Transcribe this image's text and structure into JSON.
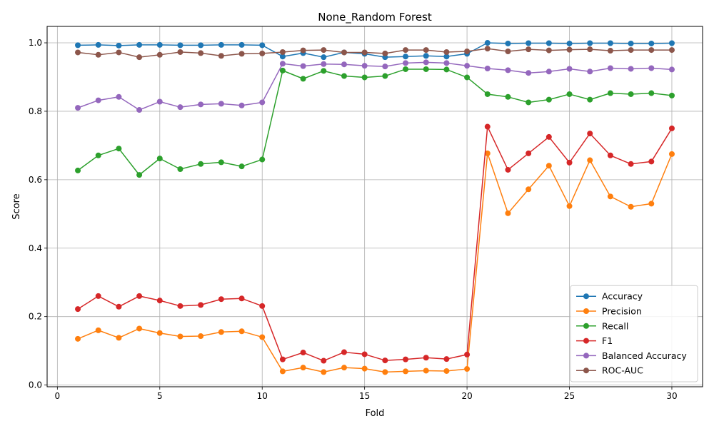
{
  "chart_data": {
    "type": "line",
    "title": "None_Random Forest",
    "xlabel": "Fold",
    "ylabel": "Score",
    "xlim": [
      -0.5,
      31.5
    ],
    "ylim": [
      -0.005,
      1.048
    ],
    "xticks": [
      0,
      5,
      10,
      15,
      20,
      25,
      30
    ],
    "yticks": [
      0.0,
      0.2,
      0.4,
      0.6,
      0.8,
      1.0
    ],
    "grid": true,
    "legend_position": "lower-right",
    "x": [
      1,
      2,
      3,
      4,
      5,
      6,
      7,
      8,
      9,
      10,
      11,
      12,
      13,
      14,
      15,
      16,
      17,
      18,
      19,
      20,
      21,
      22,
      23,
      24,
      25,
      26,
      27,
      28,
      29,
      30
    ],
    "series": [
      {
        "name": "Accuracy",
        "color": "#1f77b4",
        "values": [
          0.993,
          0.994,
          0.992,
          0.994,
          0.994,
          0.993,
          0.993,
          0.994,
          0.994,
          0.993,
          0.96,
          0.97,
          0.958,
          0.972,
          0.968,
          0.958,
          0.96,
          0.962,
          0.96,
          0.968,
          1.0,
          0.998,
          0.999,
          0.999,
          0.998,
          0.999,
          0.999,
          0.998,
          0.998,
          0.999
        ]
      },
      {
        "name": "Precision",
        "color": "#ff7f0e",
        "values": [
          0.135,
          0.16,
          0.138,
          0.165,
          0.152,
          0.142,
          0.143,
          0.155,
          0.157,
          0.14,
          0.04,
          0.051,
          0.038,
          0.051,
          0.048,
          0.038,
          0.04,
          0.042,
          0.041,
          0.047,
          0.677,
          0.502,
          0.572,
          0.641,
          0.523,
          0.657,
          0.551,
          0.521,
          0.53,
          0.675
        ]
      },
      {
        "name": "Recall",
        "color": "#2ca02c",
        "values": [
          0.627,
          0.671,
          0.691,
          0.614,
          0.662,
          0.631,
          0.646,
          0.651,
          0.639,
          0.659,
          0.919,
          0.895,
          0.918,
          0.903,
          0.899,
          0.903,
          0.923,
          0.923,
          0.922,
          0.899,
          0.85,
          0.842,
          0.826,
          0.834,
          0.85,
          0.834,
          0.853,
          0.85,
          0.853,
          0.846
        ]
      },
      {
        "name": "F1",
        "color": "#d62728",
        "values": [
          0.222,
          0.26,
          0.229,
          0.26,
          0.247,
          0.231,
          0.234,
          0.251,
          0.253,
          0.231,
          0.075,
          0.095,
          0.071,
          0.096,
          0.09,
          0.072,
          0.075,
          0.08,
          0.076,
          0.089,
          0.755,
          0.629,
          0.677,
          0.725,
          0.65,
          0.735,
          0.671,
          0.646,
          0.653,
          0.75
        ]
      },
      {
        "name": "Balanced Accuracy",
        "color": "#9467bd",
        "values": [
          0.81,
          0.832,
          0.842,
          0.804,
          0.828,
          0.812,
          0.82,
          0.822,
          0.817,
          0.826,
          0.939,
          0.932,
          0.938,
          0.937,
          0.933,
          0.931,
          0.941,
          0.943,
          0.941,
          0.933,
          0.925,
          0.92,
          0.912,
          0.916,
          0.924,
          0.916,
          0.926,
          0.924,
          0.926,
          0.922
        ]
      },
      {
        "name": "ROC-AUC",
        "color": "#8c564b",
        "values": [
          0.972,
          0.965,
          0.972,
          0.958,
          0.965,
          0.973,
          0.97,
          0.962,
          0.968,
          0.969,
          0.973,
          0.978,
          0.979,
          0.972,
          0.972,
          0.969,
          0.979,
          0.979,
          0.973,
          0.975,
          0.983,
          0.975,
          0.981,
          0.978,
          0.98,
          0.981,
          0.977,
          0.979,
          0.979,
          0.979
        ]
      }
    ]
  }
}
